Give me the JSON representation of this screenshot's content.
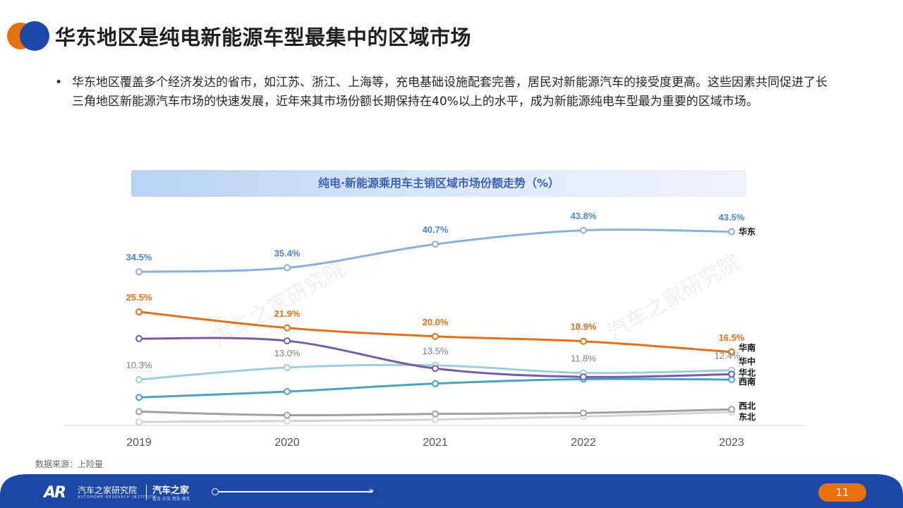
{
  "header": {
    "title": "华东地区是纯电新能源车型最集中的区域市场"
  },
  "bullet": {
    "marker": "•",
    "text": "华东地区覆盖多个经济发达的省市，如江苏、浙江、上海等，充电基础设施配套完善，居民对新能源汽车的接受度更高。这些因素共同促进了长三角地区新能源汽车市场的快速发展，近年来其市场份额长期保持在40%以上的水平，成为新能源纯电车型最为重要的区域市场。"
  },
  "chart_data": {
    "type": "line",
    "title": "纯电·新能源乘用车主销区域市场份额走势（%）",
    "categories": [
      "2019",
      "2020",
      "2021",
      "2022",
      "2023"
    ],
    "ylim": [
      0,
      48
    ],
    "grid": false,
    "legend": "right-end-labels",
    "watermark": "汽车之家研究院",
    "series": [
      {
        "name": "华东",
        "color": "#8CB0DC",
        "label_color": "#4A86C8",
        "values": [
          34.5,
          35.4,
          40.7,
          43.8,
          43.5
        ],
        "labels": [
          "34.5%",
          "35.4%",
          "40.7%",
          "43.8%",
          "43.5%"
        ]
      },
      {
        "name": "华南",
        "color": "#E0701A",
        "label_color": "#E0701A",
        "values": [
          25.5,
          21.9,
          20.0,
          18.9,
          16.5
        ],
        "labels": [
          "25.5%",
          "21.9%",
          "20.0%",
          "18.9%",
          "16.5%"
        ]
      },
      {
        "name": "华北",
        "color": "#7B5AA6",
        "label_color": "#7B5AA6",
        "values": [
          19.5,
          19.0,
          12.8,
          10.9,
          11.5
        ],
        "labels": []
      },
      {
        "name": "华中",
        "color": "#9DCFDA",
        "label_color": "#808080",
        "values": [
          10.3,
          13.0,
          13.5,
          11.8,
          12.4
        ],
        "labels": [
          "10.3%",
          "13.0%",
          "13.5%",
          "11.8%",
          "12.4%"
        ]
      },
      {
        "name": "西南",
        "color": "#4BA3C0",
        "label_color": "#4BA3C0",
        "values": [
          6.3,
          7.6,
          9.4,
          10.4,
          10.3
        ],
        "labels": []
      },
      {
        "name": "西北",
        "color": "#A0A0A0",
        "label_color": "#A0A0A0",
        "values": [
          3.1,
          2.3,
          2.6,
          2.8,
          3.6
        ],
        "labels": []
      },
      {
        "name": "东北",
        "color": "#D4D4D4",
        "label_color": "#D4D4D4",
        "values": [
          0.8,
          1.0,
          1.3,
          2.0,
          3.0
        ],
        "labels": []
      }
    ]
  },
  "source": "数据来源：上险量",
  "footer": {
    "logo_mark": "AR",
    "brand1": "汽车之家研究院",
    "brand1_sub": "AUTOHOME RESEARCH INSTITUTE",
    "brand2": "汽车之家",
    "brand2_sub": "看车·买车·用车·换车",
    "page": "11",
    "arrow": "»",
    "colors": {
      "bar": "#1A47A8",
      "page_badge": "#E8700E"
    }
  }
}
